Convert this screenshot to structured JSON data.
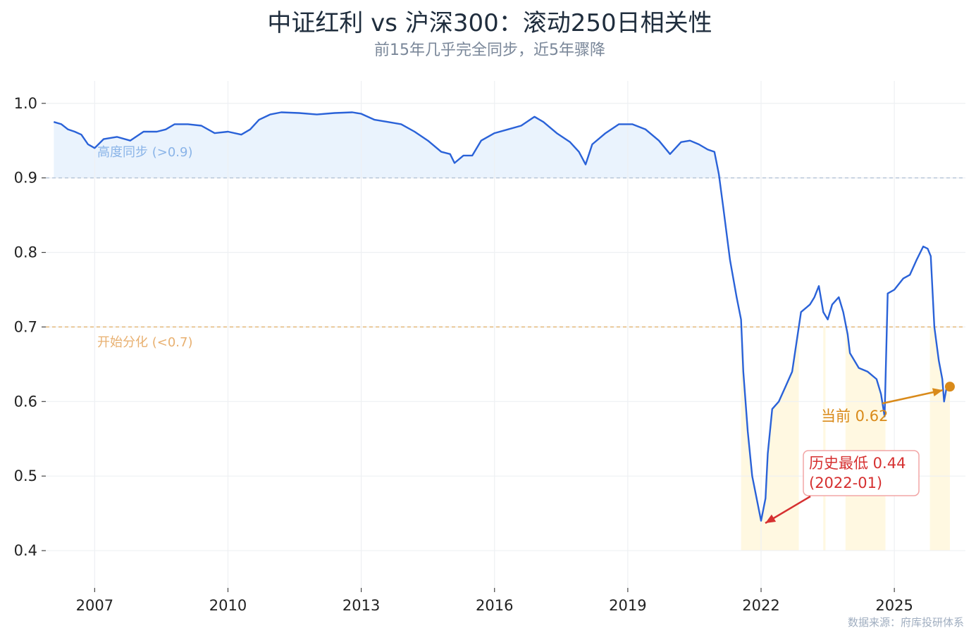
{
  "chart_data": {
    "type": "line",
    "title": "中证红利 vs 沪深300：滚动250日相关性",
    "subtitle": "前15年几乎完全同步，近5年骤降",
    "xlim": [
      2005.9,
      2026.6
    ],
    "ylim": [
      0.35,
      1.03
    ],
    "x_ticks": [
      2007,
      2010,
      2013,
      2016,
      2019,
      2022,
      2025
    ],
    "y_ticks": [
      0.4,
      0.5,
      0.6,
      0.7,
      0.8,
      0.9,
      1.0
    ],
    "y_tick_labels": [
      "0.4",
      "0.5",
      "0.6",
      "0.7",
      "0.8",
      "0.9",
      "1.0"
    ],
    "grid": true,
    "line_color": "#2a62d8",
    "thresholds": [
      {
        "value": 0.9,
        "label": "高度同步 (>0.9)",
        "color": "#b8c7d9"
      },
      {
        "value": 0.7,
        "label": "开始分化 (<0.7)",
        "color": "#e3b87a"
      }
    ],
    "sync_fill_color": "#eaf3fd",
    "divergence_fill_color": "#fff8e1",
    "divergence_periods": [
      [
        2021.55,
        2022.85
      ],
      [
        2023.4,
        2023.45
      ],
      [
        2023.9,
        2024.8
      ],
      [
        2025.8,
        2026.25
      ]
    ],
    "series": [
      {
        "points": [
          [
            2006.08,
            0.975
          ],
          [
            2006.25,
            0.972
          ],
          [
            2006.4,
            0.965
          ],
          [
            2006.55,
            0.962
          ],
          [
            2006.7,
            0.958
          ],
          [
            2006.85,
            0.945
          ],
          [
            2007.0,
            0.94
          ],
          [
            2007.2,
            0.952
          ],
          [
            2007.5,
            0.955
          ],
          [
            2007.8,
            0.95
          ],
          [
            2008.1,
            0.962
          ],
          [
            2008.4,
            0.962
          ],
          [
            2008.6,
            0.965
          ],
          [
            2008.8,
            0.972
          ],
          [
            2009.1,
            0.972
          ],
          [
            2009.4,
            0.97
          ],
          [
            2009.7,
            0.96
          ],
          [
            2010.0,
            0.962
          ],
          [
            2010.3,
            0.958
          ],
          [
            2010.5,
            0.965
          ],
          [
            2010.7,
            0.978
          ],
          [
            2010.95,
            0.985
          ],
          [
            2011.2,
            0.988
          ],
          [
            2011.6,
            0.987
          ],
          [
            2012.0,
            0.985
          ],
          [
            2012.4,
            0.987
          ],
          [
            2012.8,
            0.988
          ],
          [
            2013.0,
            0.986
          ],
          [
            2013.3,
            0.978
          ],
          [
            2013.6,
            0.975
          ],
          [
            2013.9,
            0.972
          ],
          [
            2014.2,
            0.962
          ],
          [
            2014.5,
            0.95
          ],
          [
            2014.8,
            0.935
          ],
          [
            2015.0,
            0.932
          ],
          [
            2015.1,
            0.92
          ],
          [
            2015.3,
            0.93
          ],
          [
            2015.5,
            0.93
          ],
          [
            2015.7,
            0.95
          ],
          [
            2016.0,
            0.96
          ],
          [
            2016.3,
            0.965
          ],
          [
            2016.6,
            0.97
          ],
          [
            2016.9,
            0.982
          ],
          [
            2017.1,
            0.975
          ],
          [
            2017.4,
            0.96
          ],
          [
            2017.7,
            0.948
          ],
          [
            2017.9,
            0.935
          ],
          [
            2018.05,
            0.918
          ],
          [
            2018.2,
            0.945
          ],
          [
            2018.5,
            0.96
          ],
          [
            2018.8,
            0.972
          ],
          [
            2019.1,
            0.972
          ],
          [
            2019.4,
            0.965
          ],
          [
            2019.7,
            0.95
          ],
          [
            2019.95,
            0.932
          ],
          [
            2020.2,
            0.948
          ],
          [
            2020.4,
            0.95
          ],
          [
            2020.6,
            0.945
          ],
          [
            2020.8,
            0.938
          ],
          [
            2020.95,
            0.935
          ],
          [
            2021.05,
            0.905
          ],
          [
            2021.15,
            0.86
          ],
          [
            2021.3,
            0.79
          ],
          [
            2021.45,
            0.74
          ],
          [
            2021.55,
            0.71
          ],
          [
            2021.6,
            0.64
          ],
          [
            2021.7,
            0.56
          ],
          [
            2021.8,
            0.5
          ],
          [
            2021.9,
            0.47
          ],
          [
            2022.0,
            0.44
          ],
          [
            2022.1,
            0.47
          ],
          [
            2022.15,
            0.53
          ],
          [
            2022.25,
            0.59
          ],
          [
            2022.4,
            0.6
          ],
          [
            2022.55,
            0.62
          ],
          [
            2022.7,
            0.64
          ],
          [
            2022.8,
            0.68
          ],
          [
            2022.9,
            0.72
          ],
          [
            2023.1,
            0.73
          ],
          [
            2023.2,
            0.74
          ],
          [
            2023.3,
            0.755
          ],
          [
            2023.4,
            0.72
          ],
          [
            2023.5,
            0.71
          ],
          [
            2023.6,
            0.73
          ],
          [
            2023.75,
            0.74
          ],
          [
            2023.85,
            0.72
          ],
          [
            2023.95,
            0.69
          ],
          [
            2024.0,
            0.665
          ],
          [
            2024.2,
            0.645
          ],
          [
            2024.4,
            0.64
          ],
          [
            2024.6,
            0.63
          ],
          [
            2024.7,
            0.61
          ],
          [
            2024.78,
            0.58
          ],
          [
            2024.85,
            0.745
          ],
          [
            2025.0,
            0.75
          ],
          [
            2025.2,
            0.765
          ],
          [
            2025.35,
            0.77
          ],
          [
            2025.5,
            0.79
          ],
          [
            2025.65,
            0.808
          ],
          [
            2025.75,
            0.805
          ],
          [
            2025.82,
            0.795
          ],
          [
            2025.9,
            0.7
          ],
          [
            2026.0,
            0.655
          ],
          [
            2026.08,
            0.63
          ],
          [
            2026.12,
            0.6
          ],
          [
            2026.18,
            0.62
          ],
          [
            2026.25,
            0.62
          ]
        ]
      }
    ],
    "annotations": [
      {
        "text": "当前 0.62",
        "x": 2026.25,
        "y": 0.62,
        "color": "#d98a1a"
      },
      {
        "text_line1": "历史最低 0.44",
        "text_line2": "(2022-01)",
        "x": 2022.0,
        "y": 0.435,
        "color": "#d63030"
      }
    ],
    "source": "数据来源：府库投研体系"
  }
}
